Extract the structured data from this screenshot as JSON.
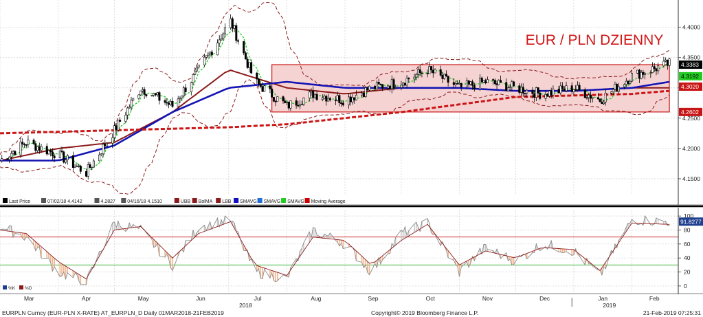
{
  "title": "EUR / PLN DZIENNY",
  "legend": {
    "items": [
      {
        "label": "Last Price",
        "color": "#000000"
      },
      {
        "label": "07/02/18 4.4142",
        "color": "#555555"
      },
      {
        "label": "4.2827",
        "color": "#555555"
      },
      {
        "label": "04/16/18 4.1510",
        "color": "#555555"
      },
      {
        "label": "UBB",
        "color": "#8b1a1a"
      },
      {
        "label": "BolMA",
        "color": "#8b1a1a"
      },
      {
        "label": "LBB",
        "color": "#8b1a1a"
      },
      {
        "label": "SMAVG",
        "color": "#1010c0"
      },
      {
        "label": "SMAVG",
        "color": "#1e6fd9"
      },
      {
        "label": "SMAVG",
        "color": "#22cc22"
      },
      {
        "label": "Moving Average",
        "color": "#cc0000"
      }
    ]
  },
  "price_badges": [
    {
      "text": "4.3383",
      "bg": "#000000",
      "fg": "#ffffff"
    },
    {
      "text": "4.3192",
      "bg": "#22cc22",
      "fg": "#000000"
    },
    {
      "text": "4.3020",
      "bg": "#c81414",
      "fg": "#ffffff"
    },
    {
      "text": "4.2602",
      "bg": "#c81414",
      "fg": "#ffffff"
    }
  ],
  "osc_badges": [
    {
      "text": "91.8277",
      "bg": "#1e3f8f",
      "fg": "#ffffff"
    }
  ],
  "osc_legend": [
    {
      "label": "%K",
      "color": "#1e3f8f"
    },
    {
      "label": "%D",
      "color": "#8b1a1a"
    }
  ],
  "footer": {
    "left": "EURPLN Curncy (EUR-PLN X-RATE) AT_EURPLN_D  Daily 01MAR2018-21FEB2019",
    "center": "Copyright© 2019 Bloomberg Finance L.P.",
    "right": "21-Feb-2019 07:25:31"
  },
  "colors": {
    "range_fill": "#f6d3d3",
    "range_border": "#c81414",
    "bollinger": "#8b1a1a",
    "sma_blue": "#1414b4",
    "sma_green": "#22cc22",
    "moving_average": "#cc1414",
    "candle": "#000000",
    "k_line": "#8c8c8c",
    "d_line": "#8b1a1a",
    "osc_upper_line": "#c81414",
    "osc_lower_line": "#22aa22"
  },
  "chart_data": [
    {
      "type": "line",
      "title": "EUR / PLN DZIENNY",
      "x_months": [
        "Mar",
        "Apr",
        "May",
        "Jun",
        "Jul",
        "Aug",
        "Sep",
        "Oct",
        "Nov",
        "Dec",
        "Jan",
        "Feb"
      ],
      "x_years": [
        "2018",
        "2019"
      ],
      "y_ticks": [
        4.15,
        4.2,
        4.25,
        4.3,
        4.35,
        4.4
      ],
      "ylim": [
        4.125,
        4.445
      ],
      "grid": true,
      "legend_position": "bottom-left",
      "range_box": {
        "x_start": "2018-07-24",
        "x_end": "2019-02-21",
        "low": 4.2602,
        "high": 4.3383
      },
      "series": [
        {
          "name": "Last Price",
          "x": [
            "2018-03-01",
            "2018-03-15",
            "2018-04-01",
            "2018-04-16",
            "2018-05-01",
            "2018-05-15",
            "2018-06-01",
            "2018-06-15",
            "2018-07-02",
            "2018-07-15",
            "2018-08-01",
            "2018-08-15",
            "2018-09-01",
            "2018-09-15",
            "2018-10-01",
            "2018-10-15",
            "2018-11-01",
            "2018-11-15",
            "2018-12-01",
            "2018-12-15",
            "2019-01-01",
            "2019-01-15",
            "2019-02-01",
            "2019-02-21"
          ],
          "values": [
            4.18,
            4.21,
            4.19,
            4.16,
            4.23,
            4.3,
            4.27,
            4.33,
            4.41,
            4.31,
            4.27,
            4.29,
            4.28,
            4.3,
            4.31,
            4.33,
            4.3,
            4.31,
            4.3,
            4.29,
            4.3,
            4.28,
            4.32,
            4.34
          ]
        },
        {
          "name": "BolMA",
          "x": [
            "2018-03-01",
            "2018-04-01",
            "2018-05-01",
            "2018-06-01",
            "2018-07-01",
            "2018-08-01",
            "2018-09-01",
            "2018-10-01",
            "2018-11-01",
            "2018-12-01",
            "2019-01-01",
            "2019-02-01",
            "2019-02-21"
          ],
          "values": [
            4.18,
            4.2,
            4.21,
            4.26,
            4.33,
            4.3,
            4.29,
            4.3,
            4.3,
            4.295,
            4.295,
            4.3,
            4.3
          ]
        },
        {
          "name": "SMAVG",
          "x": [
            "2018-03-01",
            "2018-04-01",
            "2018-05-01",
            "2018-06-01",
            "2018-07-01",
            "2018-08-01",
            "2018-09-01",
            "2018-10-01",
            "2018-11-01",
            "2018-12-01",
            "2019-01-01",
            "2019-02-01",
            "2019-02-21"
          ],
          "values": [
            4.18,
            4.18,
            4.205,
            4.26,
            4.3,
            4.31,
            4.3,
            4.3,
            4.3,
            4.295,
            4.295,
            4.3,
            4.31
          ]
        },
        {
          "name": "Moving Average",
          "x": [
            "2018-03-01",
            "2018-05-01",
            "2018-07-01",
            "2018-08-01",
            "2018-10-01",
            "2018-12-01",
            "2019-02-01",
            "2019-02-21"
          ],
          "values": [
            4.225,
            4.23,
            4.235,
            4.24,
            4.26,
            4.285,
            4.29,
            4.295
          ]
        }
      ]
    },
    {
      "type": "line",
      "y_ticks": [
        0,
        20,
        40,
        60,
        80,
        100
      ],
      "ylim": [
        -8,
        108
      ],
      "reference_lines": [
        70,
        30
      ],
      "series": [
        {
          "name": "%K",
          "x": [
            "2018-03-01",
            "2018-03-15",
            "2018-04-01",
            "2018-04-16",
            "2018-05-01",
            "2018-05-15",
            "2018-06-01",
            "2018-06-15",
            "2018-07-02",
            "2018-07-15",
            "2018-08-01",
            "2018-08-15",
            "2018-09-01",
            "2018-09-15",
            "2018-10-01",
            "2018-10-15",
            "2018-11-01",
            "2018-11-15",
            "2018-12-01",
            "2018-12-15",
            "2019-01-01",
            "2019-01-15",
            "2019-02-01",
            "2019-02-21"
          ],
          "values": [
            85,
            70,
            20,
            5,
            90,
            80,
            30,
            85,
            95,
            20,
            10,
            80,
            60,
            20,
            75,
            90,
            20,
            55,
            35,
            60,
            50,
            15,
            95,
            92
          ]
        },
        {
          "name": "%D",
          "x": [
            "2018-03-01",
            "2018-03-15",
            "2018-04-01",
            "2018-04-16",
            "2018-05-01",
            "2018-05-15",
            "2018-06-01",
            "2018-06-15",
            "2018-07-02",
            "2018-07-15",
            "2018-08-01",
            "2018-08-15",
            "2018-09-01",
            "2018-09-15",
            "2018-10-01",
            "2018-10-15",
            "2018-11-01",
            "2018-11-15",
            "2018-12-01",
            "2018-12-15",
            "2019-01-01",
            "2019-01-15",
            "2019-02-01",
            "2019-02-21"
          ],
          "values": [
            80,
            75,
            35,
            10,
            80,
            85,
            40,
            75,
            92,
            30,
            15,
            70,
            65,
            30,
            65,
            88,
            30,
            50,
            40,
            55,
            52,
            22,
            90,
            88
          ]
        }
      ]
    }
  ]
}
